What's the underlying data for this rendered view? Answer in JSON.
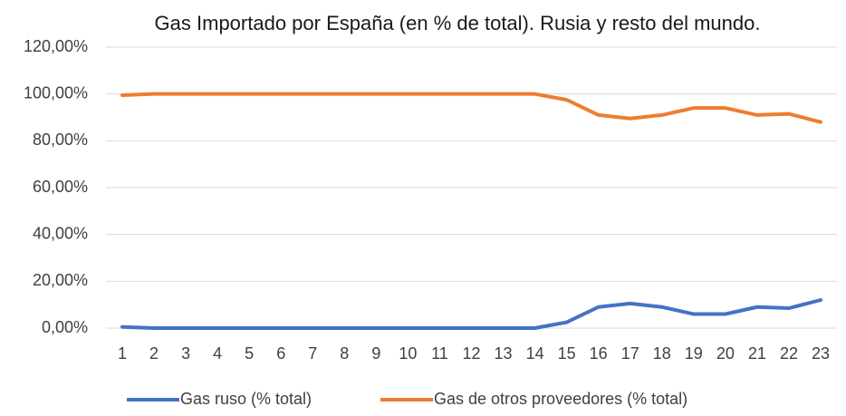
{
  "chart_data": {
    "type": "line",
    "title": "Gas Importado por España (en % de total). Rusia y resto del mundo.",
    "categories": [
      "1",
      "2",
      "3",
      "4",
      "5",
      "6",
      "7",
      "8",
      "9",
      "10",
      "11",
      "12",
      "13",
      "14",
      "15",
      "16",
      "17",
      "18",
      "19",
      "20",
      "21",
      "22",
      "23"
    ],
    "series": [
      {
        "name": "Gas ruso (% total)",
        "color": "#4472c4",
        "values": [
          0.5,
          0,
          0,
          0,
          0,
          0,
          0,
          0,
          0,
          0,
          0,
          0,
          0,
          0,
          2.5,
          9,
          10.5,
          9,
          6,
          6,
          9,
          8.5,
          12
        ]
      },
      {
        "name": "Gas de otros proveedores (% total)",
        "color": "#ed7d31",
        "values": [
          99.5,
          100,
          100,
          100,
          100,
          100,
          100,
          100,
          100,
          100,
          100,
          100,
          100,
          100,
          97.5,
          91,
          89.5,
          91,
          94,
          94,
          91,
          91.5,
          88
        ]
      }
    ],
    "ylim": [
      0,
      120
    ],
    "yticks": [
      {
        "value": 0,
        "label": "0,00%"
      },
      {
        "value": 20,
        "label": "20,00%"
      },
      {
        "value": 40,
        "label": "40,00%"
      },
      {
        "value": 60,
        "label": "60,00%"
      },
      {
        "value": 80,
        "label": "80,00%"
      },
      {
        "value": 100,
        "label": "100,00%"
      },
      {
        "value": 120,
        "label": "120,00%"
      }
    ],
    "grid": true,
    "legend": "bottom"
  }
}
